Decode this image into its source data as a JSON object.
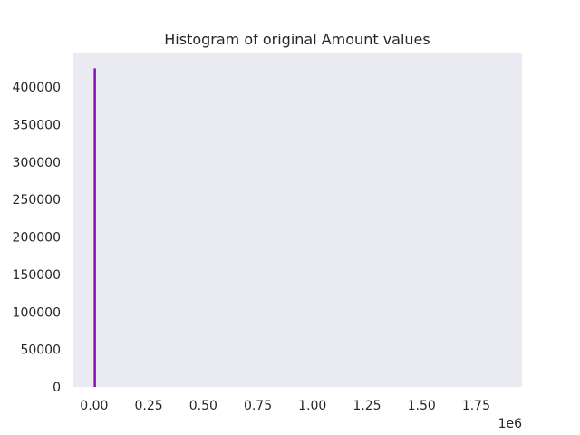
{
  "chart_data": {
    "type": "bar",
    "title": "Histogram of original Amount values",
    "xlabel": "",
    "ylabel": "",
    "x_offset_label": "1e6",
    "xlim": [
      -0.095,
      1.96
    ],
    "ylim": [
      0,
      446000
    ],
    "grid": false,
    "background": "#eaeaf2",
    "bar_color": "#8b0fb7",
    "x_ticks": [
      0.0,
      0.25,
      0.5,
      0.75,
      1.0,
      1.25,
      1.5,
      1.75
    ],
    "x_tick_labels": [
      "0.00",
      "0.25",
      "0.50",
      "0.75",
      "1.00",
      "1.25",
      "1.50",
      "1.75"
    ],
    "y_ticks": [
      0,
      50000,
      100000,
      150000,
      200000,
      250000,
      300000,
      350000,
      400000
    ],
    "y_tick_labels": [
      "0",
      "50000",
      "100000",
      "150000",
      "200000",
      "250000",
      "300000",
      "350000",
      "400000"
    ],
    "bins": [
      {
        "x0": 0.0,
        "x1": 0.007,
        "count": 425000
      }
    ]
  }
}
